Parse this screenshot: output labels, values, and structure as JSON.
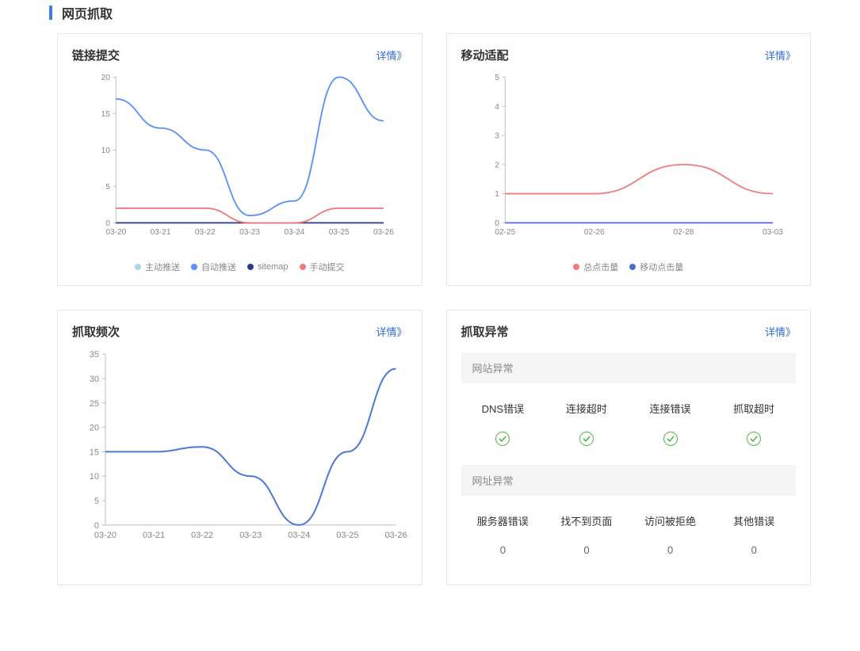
{
  "page": {
    "section_title": "网页抓取",
    "detail_label": "详情》"
  },
  "cards": {
    "link_submit": {
      "title": "链接提交",
      "chart": {
        "type": "line",
        "xlabels": [
          "03-20",
          "03-21",
          "03-22",
          "03-23",
          "03-24",
          "03-25",
          "03-26"
        ],
        "ylim": [
          0,
          20
        ],
        "ytick_step": 5,
        "background_color": "#ffffff",
        "axis_color": "#bbbbbb",
        "tick_font_size": 11,
        "tick_color": "#888888",
        "line_width": 2,
        "series": [
          {
            "name": "主动推送",
            "color": "#a8d4f2",
            "values": [
              0,
              0,
              0,
              0,
              0,
              0,
              0
            ]
          },
          {
            "name": "自动推送",
            "color": "#5b8ff9",
            "values": [
              17,
              13,
              10,
              1,
              3,
              20,
              14
            ]
          },
          {
            "name": "sitemap",
            "color": "#2a3a8c",
            "values": [
              0,
              0,
              0,
              0,
              0,
              0,
              0
            ]
          },
          {
            "name": "手动提交",
            "color": "#f07b7b",
            "values": [
              2,
              2,
              2,
              0,
              0,
              2,
              2
            ]
          }
        ]
      }
    },
    "mobile_adapt": {
      "title": "移动适配",
      "chart": {
        "type": "line",
        "xlabels": [
          "02-25",
          "02-26",
          "02-28",
          "03-03"
        ],
        "ylim": [
          0,
          5
        ],
        "ytick_step": 1,
        "background_color": "#ffffff",
        "axis_color": "#bbbbbb",
        "tick_font_size": 11,
        "tick_color": "#888888",
        "line_width": 2,
        "series": [
          {
            "name": "总点击量",
            "color": "#f07b7b",
            "values": [
              1,
              1,
              2,
              1
            ]
          },
          {
            "name": "移动点击量",
            "color": "#4a6fd1",
            "values": [
              0,
              0,
              0,
              0
            ]
          }
        ]
      }
    },
    "crawl_freq": {
      "title": "抓取频次",
      "chart": {
        "type": "line",
        "xlabels": [
          "03-20",
          "03-21",
          "03-22",
          "03-23",
          "03-24",
          "03-25",
          "03-26"
        ],
        "ylim": [
          0,
          35
        ],
        "ytick_step": 5,
        "background_color": "#ffffff",
        "axis_color": "#bbbbbb",
        "tick_font_size": 11,
        "tick_color": "#888888",
        "line_width": 2,
        "series": [
          {
            "name": "",
            "color": "#4a78d6",
            "values": [
              15,
              15,
              16,
              10,
              0,
              15,
              32
            ]
          }
        ]
      }
    },
    "crawl_err": {
      "title": "抓取异常",
      "site_err_header": "网站异常",
      "site_errs": [
        {
          "label": "DNS错误",
          "status": "ok"
        },
        {
          "label": "连接超时",
          "status": "ok"
        },
        {
          "label": "连接错误",
          "status": "ok"
        },
        {
          "label": "抓取超时",
          "status": "ok"
        }
      ],
      "url_err_header": "网址异常",
      "url_errs": [
        {
          "label": "服务器错误",
          "value": "0"
        },
        {
          "label": "找不到页面",
          "value": "0"
        },
        {
          "label": "访问被拒绝",
          "value": "0"
        },
        {
          "label": "其他错误",
          "value": "0"
        }
      ]
    }
  }
}
